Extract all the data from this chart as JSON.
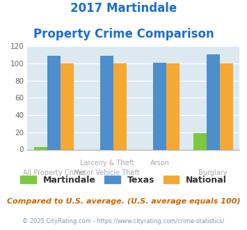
{
  "title_line1": "2017 Martindale",
  "title_line2": "Property Crime Comparison",
  "martindale": [
    3,
    0,
    0,
    19
  ],
  "texas": [
    109,
    109,
    101,
    110
  ],
  "national": [
    100,
    100,
    100,
    100
  ],
  "martindale_color": "#7dc83e",
  "texas_color": "#4d8fcc",
  "national_color": "#f5a833",
  "bg_color": "#dce9f0",
  "ylim": [
    0,
    120
  ],
  "yticks": [
    0,
    20,
    40,
    60,
    80,
    100,
    120
  ],
  "title_color": "#1a6fcc",
  "top_labels": [
    "",
    "Larceny & Theft",
    "Arson",
    ""
  ],
  "bot_labels": [
    "All Property Crime",
    "Motor Vehicle Theft",
    "",
    "Burglary"
  ],
  "subtitle_note": "Compared to U.S. average. (U.S. average equals 100)",
  "copyright": "© 2025 CityRating.com - https://www.cityrating.com/crime-statistics/",
  "legend_labels": [
    "Martindale",
    "Texas",
    "National"
  ]
}
